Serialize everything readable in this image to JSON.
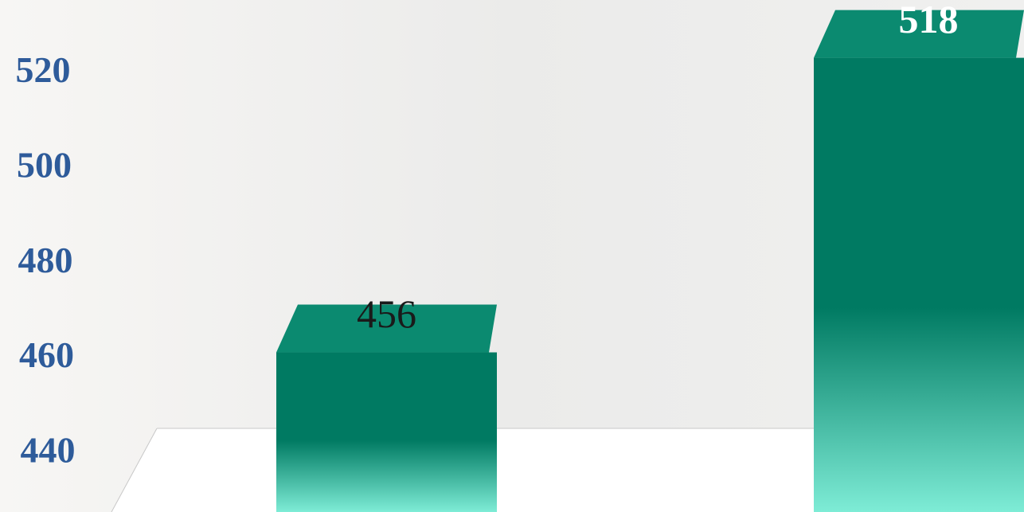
{
  "chart_data": {
    "type": "bar",
    "categories": [
      null,
      null
    ],
    "values": [
      456,
      518
    ],
    "color": "#007a62",
    "ylim": [
      440,
      530
    ],
    "yticks": [
      440,
      460,
      480,
      500,
      520
    ]
  }
}
